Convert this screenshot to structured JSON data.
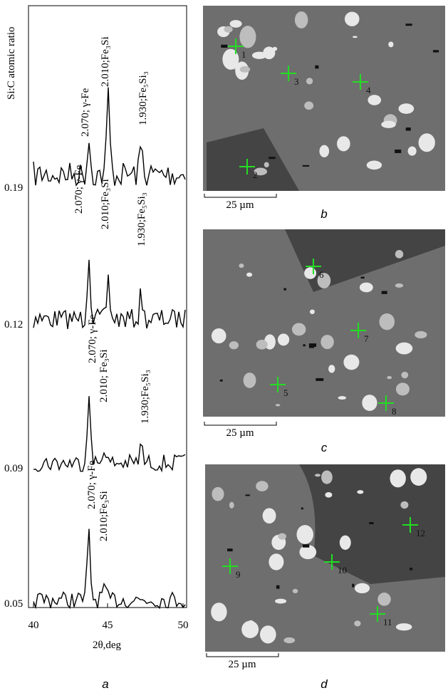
{
  "plot": {
    "y_label": "Si:C atomic ratio",
    "x_label": "2θ,deg",
    "x_ticks": [
      "40",
      "45",
      "50"
    ],
    "panel": "a",
    "traces": [
      {
        "ratio": "0.19",
        "peaks": [
          "2.070; γ-Fe",
          "2.010;Fe₃Si",
          "1.930;Fe₅Si₃"
        ]
      },
      {
        "ratio": "0.12",
        "peaks": [
          "2.070; γ-Fe",
          "2.010;Fe₃Si",
          "1.930;Fe₅Si₃"
        ]
      },
      {
        "ratio": "0.09",
        "peaks": [
          "2.070; γ-Fe",
          "2.010; Fe₃Si",
          "1.930;Fe₅Si₃"
        ]
      },
      {
        "ratio": "0.05",
        "peaks": [
          "2.070; γ-Fe",
          "2.010;Fe₃Si"
        ]
      }
    ]
  },
  "images": [
    {
      "panel": "b",
      "scale": "25 µm",
      "points": [
        "1",
        "2",
        "3",
        "4"
      ]
    },
    {
      "panel": "c",
      "scale": "25 µm",
      "points": [
        "6",
        "7",
        "5",
        "8"
      ]
    },
    {
      "panel": "d",
      "scale": "25 µm",
      "points": [
        "12",
        "10",
        "9",
        "11"
      ]
    }
  ]
}
